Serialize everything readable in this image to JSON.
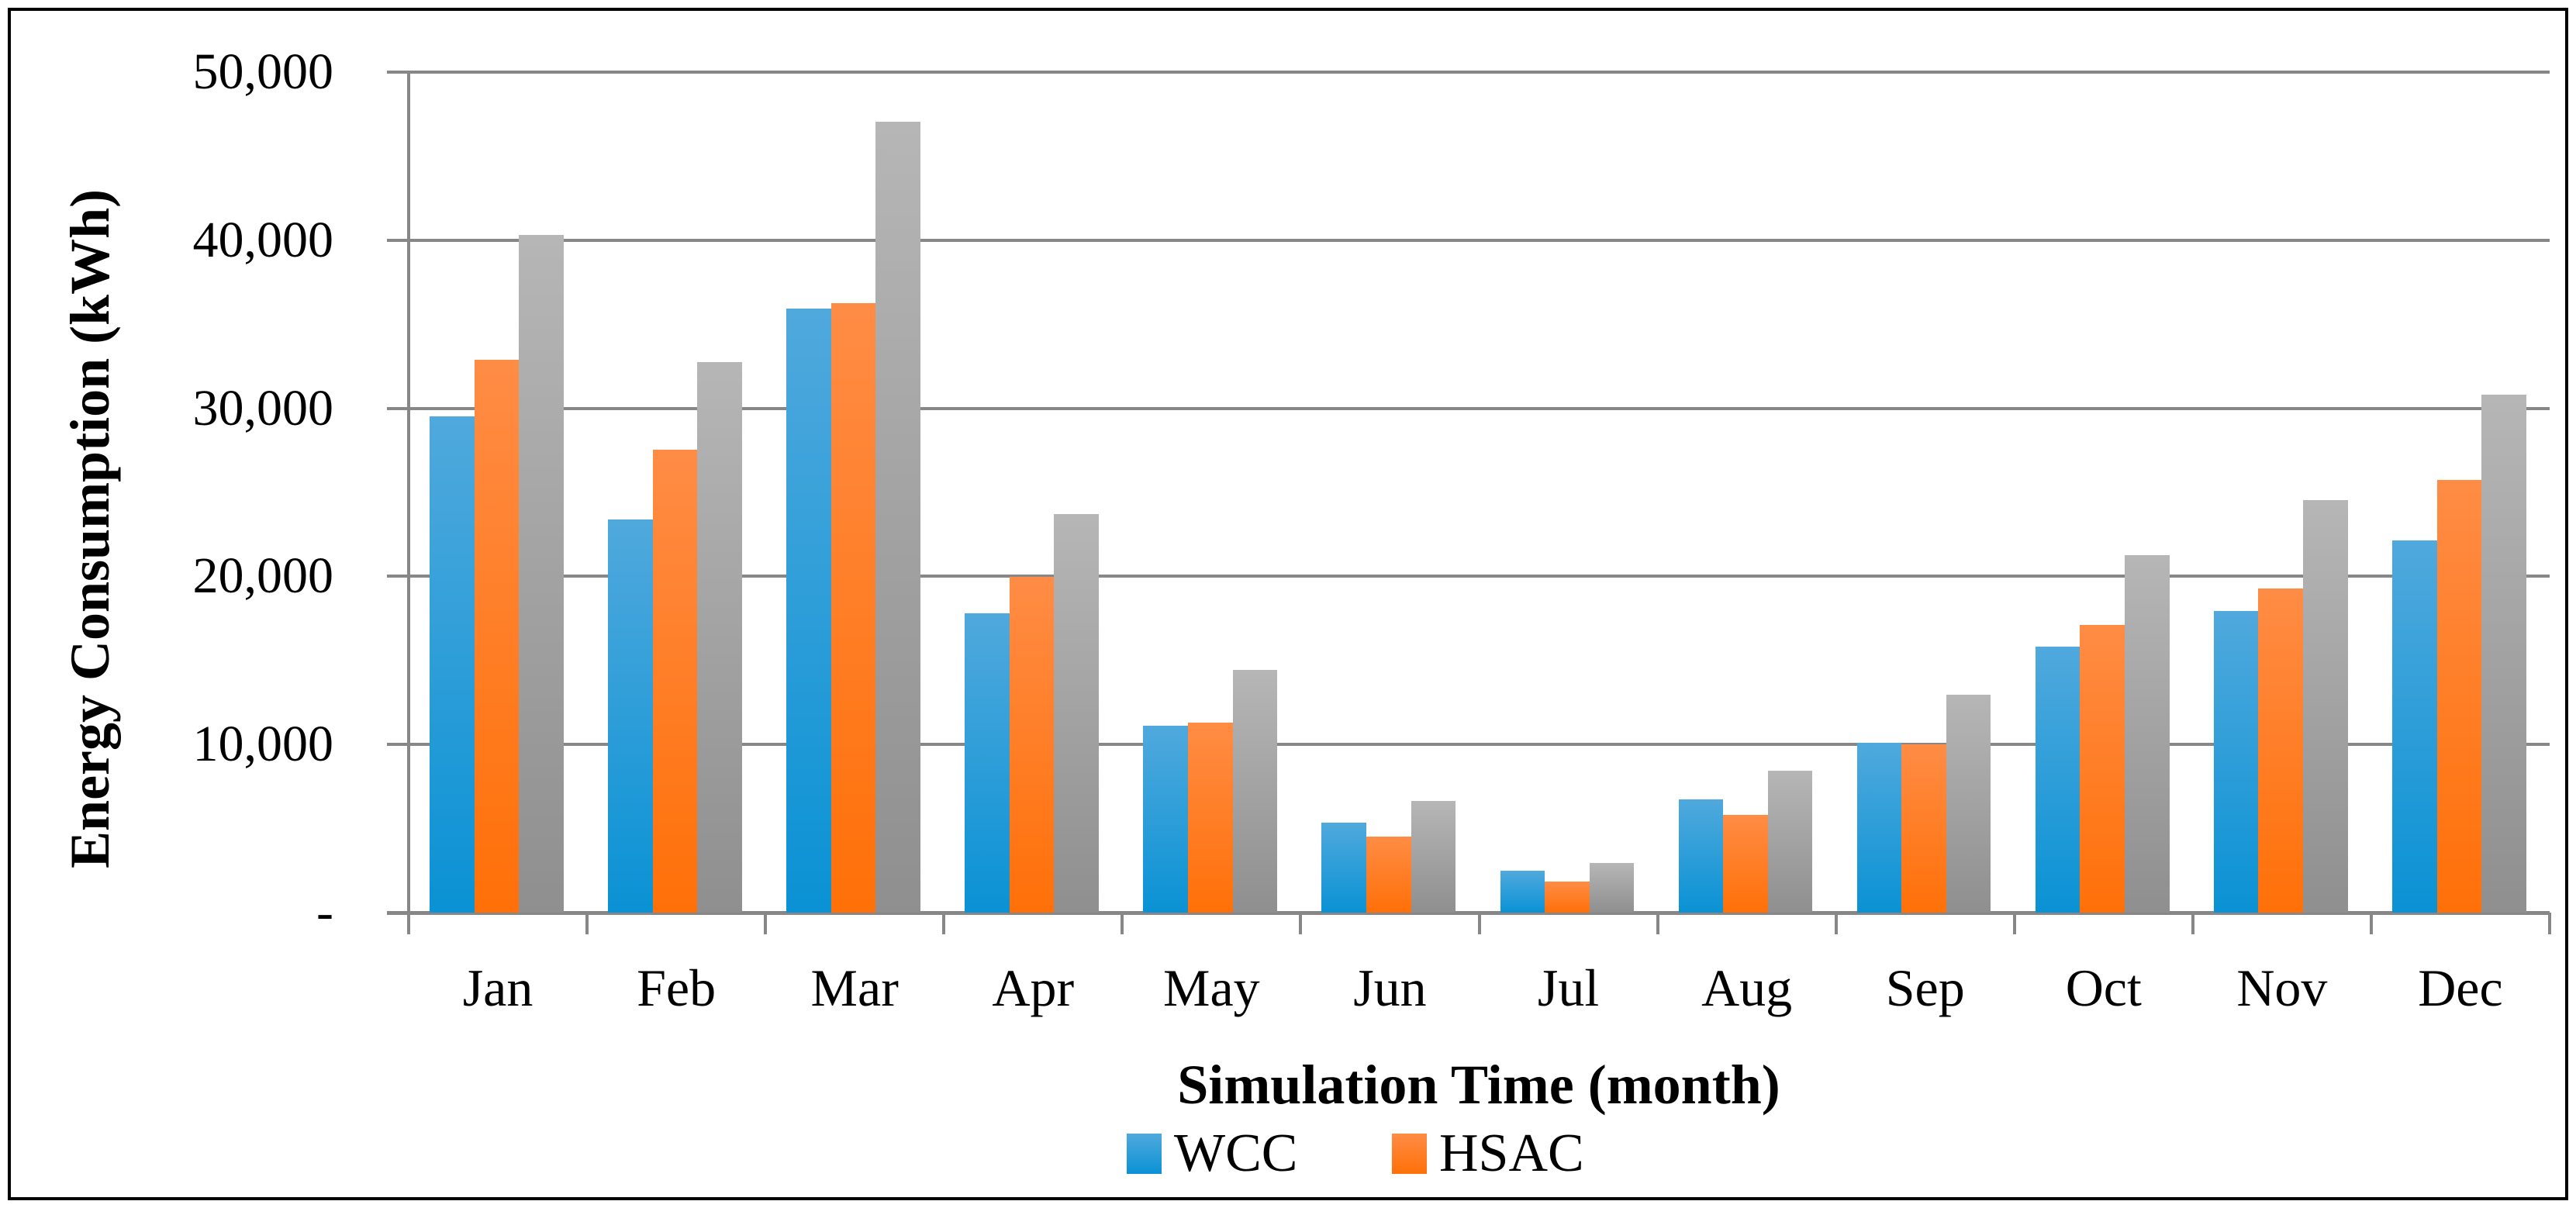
{
  "chart_data": {
    "type": "bar",
    "title": "",
    "xlabel": "Simulation Time (month)",
    "ylabel": "Energy Consumption (kWh)",
    "categories": [
      "Jan",
      "Feb",
      "Mar",
      "Apr",
      "May",
      "Jun",
      "Jul",
      "Aug",
      "Sep",
      "Oct",
      "Nov",
      "Dec"
    ],
    "series": [
      {
        "name": "WCC",
        "in_legend": true,
        "color_top": "#50A9DD",
        "color_bottom": "#0A92D4",
        "values": [
          29500,
          23400,
          35950,
          17800,
          11100,
          5350,
          2500,
          6750,
          10100,
          15800,
          17950,
          22150
        ]
      },
      {
        "name": "HSAC",
        "in_legend": true,
        "color_top": "#FF8C45",
        "color_bottom": "#FF7008",
        "values": [
          32900,
          27550,
          36250,
          19950,
          11300,
          4500,
          1850,
          5800,
          10000,
          17100,
          19300,
          25750
        ]
      },
      {
        "name": "",
        "in_legend": false,
        "color_top": "#B6B6B6",
        "color_bottom": "#8F8F8F",
        "values": [
          40300,
          32750,
          47050,
          23700,
          14450,
          6650,
          2950,
          8450,
          12950,
          21250,
          24550,
          30800
        ]
      }
    ],
    "ylim": [
      0,
      50000
    ],
    "ytick_interval": 10000,
    "ytick_labels": [
      "-",
      "10,000",
      "20,000",
      "30,000",
      "40,000",
      "50,000"
    ],
    "legend": [
      "WCC",
      "HSAC"
    ],
    "legend_position": "bottom",
    "grid": "horizontal",
    "axis_color": "#878787"
  }
}
